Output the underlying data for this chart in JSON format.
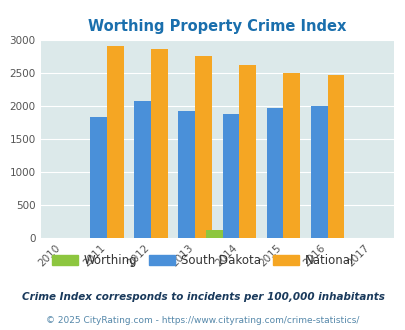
{
  "title": "Worthing Property Crime Index",
  "years": [
    2010,
    2011,
    2012,
    2013,
    2014,
    2015,
    2016,
    2017
  ],
  "worthing": {
    "2014": 110
  },
  "south_dakota": {
    "2011": 1820,
    "2012": 2070,
    "2013": 1920,
    "2014": 1880,
    "2015": 1960,
    "2016": 2000
  },
  "national": {
    "2011": 2900,
    "2012": 2860,
    "2013": 2750,
    "2014": 2610,
    "2015": 2500,
    "2016": 2460
  },
  "color_worthing": "#8dc63f",
  "color_sd": "#4a90d9",
  "color_national": "#f5a623",
  "bg_color": "#dce9ea",
  "ylim": [
    0,
    3000
  ],
  "yticks": [
    0,
    500,
    1000,
    1500,
    2000,
    2500,
    3000
  ],
  "legend_labels": [
    "Worthing",
    "South Dakota",
    "National"
  ],
  "footnote1": "Crime Index corresponds to incidents per 100,000 inhabitants",
  "footnote2": "© 2025 CityRating.com - https://www.cityrating.com/crime-statistics/",
  "title_color": "#1a6fad",
  "footnote1_color": "#1a3a5c",
  "footnote2_color": "#5588aa",
  "bar_width": 0.38
}
